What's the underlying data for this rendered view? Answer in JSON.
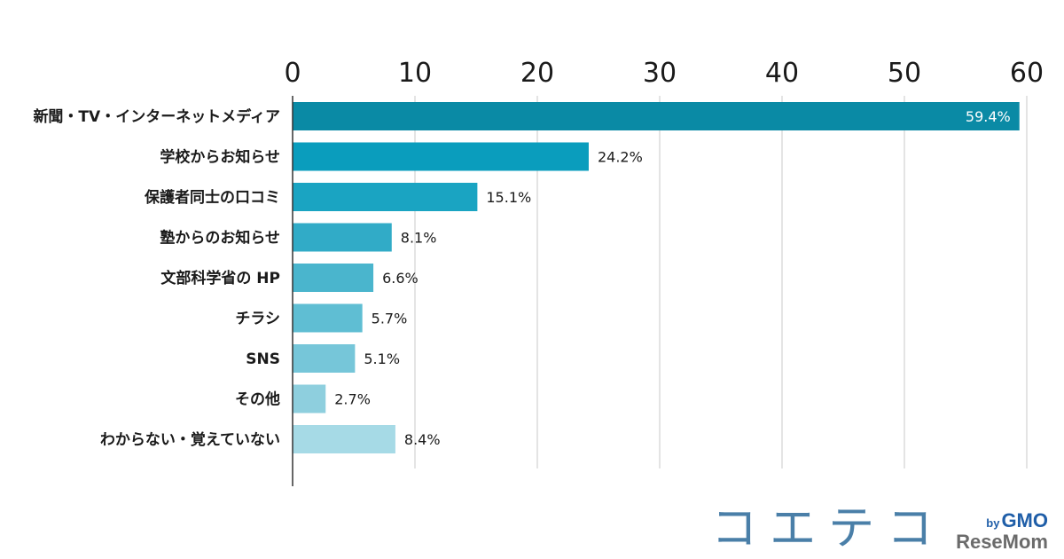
{
  "chart_data": {
    "type": "bar",
    "orientation": "horizontal",
    "title": "",
    "xlabel": "",
    "ylabel": "",
    "xlim": [
      0,
      60
    ],
    "x_ticks": [
      0,
      10,
      20,
      30,
      40,
      50,
      60
    ],
    "grid": true,
    "categories": [
      "新聞・TV・インターネットメディア",
      "学校からお知らせ",
      "保護者同士の口コミ",
      "塾からのお知らせ",
      "文部科学省の HP",
      "チラシ",
      "SNS",
      "その他",
      "わからない・覚えていない"
    ],
    "values": [
      59.4,
      24.2,
      15.1,
      8.1,
      6.6,
      5.7,
      5.1,
      2.7,
      8.4
    ],
    "value_labels": [
      "59.4%",
      "24.2%",
      "15.1%",
      "8.1%",
      "6.6%",
      "5.7%",
      "5.1%",
      "2.7%",
      "8.4%"
    ],
    "colors": [
      "#0a8aa5",
      "#0a9dbd",
      "#1aa4c2",
      "#31abc7",
      "#4ab5cd",
      "#5fbed3",
      "#76c6d9",
      "#8ecfde",
      "#a6dae6"
    ]
  },
  "logo": {
    "main": "コエテコ",
    "by": "by",
    "gmo": "GMO",
    "resemom": "ReseMom"
  }
}
